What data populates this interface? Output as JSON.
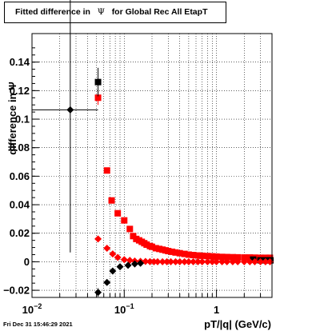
{
  "title_prefix": "Fitted difference in",
  "title_symbol": "Ψ",
  "title_suffix": "for Global Rec All EtapT",
  "datestamp": "Fri Dec 31 15:46:29 2021",
  "chart_data": {
    "type": "scatter",
    "xlabel": "pT/|q| (GeV/c)",
    "ylabel": "difference in Ψ",
    "x_scale": "log",
    "xlim": [
      0.01,
      4.0
    ],
    "ylim": [
      -0.025,
      0.16
    ],
    "grid": true,
    "legend": "none",
    "y_ticks": [
      {
        "v": -0.02,
        "label": "−0.02"
      },
      {
        "v": 0,
        "label": "0"
      },
      {
        "v": 0.02,
        "label": "0.02"
      },
      {
        "v": 0.04,
        "label": "0.04"
      },
      {
        "v": 0.06,
        "label": "0.06"
      },
      {
        "v": 0.08,
        "label": "0.08"
      },
      {
        "v": 0.1,
        "label": "0.1"
      },
      {
        "v": 0.12,
        "label": "0.12"
      },
      {
        "v": 0.14,
        "label": "0.14"
      }
    ],
    "x_ticks": [
      {
        "v": 0.01,
        "base": "10",
        "exp": "−2"
      },
      {
        "v": 0.1,
        "base": "10",
        "exp": "−1"
      },
      {
        "v": 1,
        "base": "1",
        "exp": ""
      }
    ],
    "series": [
      {
        "color": "#ff0000",
        "marker": "square",
        "points": [
          [
            0.052,
            0.115
          ],
          [
            0.065,
            0.064
          ],
          [
            0.073,
            0.043
          ],
          [
            0.085,
            0.034
          ],
          [
            0.1,
            0.029
          ],
          [
            0.115,
            0.023
          ],
          [
            0.125,
            0.018
          ],
          [
            0.135,
            0.016
          ],
          [
            0.145,
            0.015
          ],
          [
            0.155,
            0.014
          ],
          [
            0.165,
            0.013
          ],
          [
            0.175,
            0.012
          ],
          [
            0.19,
            0.011
          ],
          [
            0.2,
            0.0105
          ],
          [
            0.22,
            0.0095
          ],
          [
            0.24,
            0.009
          ],
          [
            0.26,
            0.0085
          ],
          [
            0.28,
            0.008
          ],
          [
            0.3,
            0.0075
          ],
          [
            0.33,
            0.007
          ],
          [
            0.36,
            0.0065
          ],
          [
            0.4,
            0.006
          ],
          [
            0.45,
            0.0055
          ],
          [
            0.5,
            0.005
          ],
          [
            0.56,
            0.0047
          ],
          [
            0.63,
            0.0044
          ],
          [
            0.7,
            0.0042
          ],
          [
            0.8,
            0.004
          ],
          [
            0.9,
            0.0038
          ],
          [
            1.0,
            0.0036
          ],
          [
            1.15,
            0.0034
          ],
          [
            1.3,
            0.0033
          ],
          [
            1.5,
            0.0032
          ],
          [
            1.7,
            0.0031
          ],
          [
            2.0,
            0.003
          ],
          [
            2.3,
            0.003
          ],
          [
            2.6,
            0.0029
          ],
          [
            3.0,
            0.0028
          ],
          [
            3.4,
            0.0028
          ],
          [
            3.8,
            0.0028
          ]
        ],
        "yerr": [
          0.005,
          0.002,
          0.0015,
          0.001,
          0.001,
          0.001,
          0.0008,
          0.0008,
          0.0006,
          0.0006,
          0.0005,
          0.0005,
          0.0005,
          0.0005,
          0.0004,
          0.0004,
          0.0004,
          0.0004,
          0.0003,
          0.0003,
          0.0003,
          0.0003,
          0.0003,
          0.0003,
          0.0002,
          0.0002,
          0.0002,
          0.0002,
          0.0002,
          0.0002,
          0.0002,
          0.0002,
          0.0002,
          0.0002,
          0.0002,
          0.0002,
          0.0002,
          0.0002,
          0.0002,
          0.0002
        ]
      },
      {
        "color": "#000000",
        "marker": "square",
        "points": [
          [
            0.052,
            0.126
          ],
          [
            2.5,
            0.0015
          ],
          [
            3.0,
            0.001
          ],
          [
            3.5,
            0.001
          ],
          [
            3.85,
            0.001
          ]
        ],
        "yerr": [
          0.01,
          0.0005,
          0.0005,
          0.0005,
          0.0005
        ]
      },
      {
        "color": "#ff0000",
        "marker": "diamond",
        "points": [
          [
            0.052,
            0.016
          ],
          [
            0.065,
            0.0095
          ],
          [
            0.075,
            0.0055
          ],
          [
            0.085,
            0.003
          ],
          [
            0.1,
            0.0015
          ],
          [
            0.115,
            0.001
          ],
          [
            0.13,
            0.0005
          ],
          [
            0.15,
            0.0003
          ],
          [
            0.17,
            0.0002
          ],
          [
            0.19,
            0.0001
          ],
          [
            0.21,
            0
          ],
          [
            0.23,
            0
          ],
          [
            0.26,
            0
          ],
          [
            0.29,
            0
          ],
          [
            0.32,
            0
          ],
          [
            0.36,
            0
          ],
          [
            0.4,
            0
          ],
          [
            0.45,
            0
          ],
          [
            0.5,
            0
          ],
          [
            0.56,
            0
          ],
          [
            0.63,
            0
          ],
          [
            0.7,
            0
          ],
          [
            0.8,
            0
          ],
          [
            0.9,
            0
          ],
          [
            1.0,
            0
          ],
          [
            1.15,
            0
          ],
          [
            1.3,
            0
          ],
          [
            1.5,
            0
          ],
          [
            1.7,
            0
          ],
          [
            2.0,
            0
          ],
          [
            2.3,
            0
          ],
          [
            2.6,
            0
          ],
          [
            3.0,
            0
          ],
          [
            3.4,
            0
          ],
          [
            3.8,
            0
          ]
        ],
        "yerr": [
          0.0015,
          0.001,
          0.0008,
          0.0006,
          0.0005,
          0.0005,
          0.0004,
          0.0004,
          0.0003,
          0.0003,
          0.0003,
          0.0003,
          0.0003,
          0.0003,
          0.0003,
          0.0003,
          0.0003,
          0.0003,
          0.0003,
          0.0003,
          0.0003,
          0.0003,
          0.0003,
          0.0003,
          0.0003,
          0.0003,
          0.0003,
          0.0003,
          0.0003,
          0.0003,
          0.0003,
          0.0003,
          0.0003,
          0.0003,
          0.0003
        ]
      },
      {
        "color": "#000000",
        "marker": "diamond",
        "points": [
          [
            0.026,
            0.1065
          ],
          [
            0.052,
            -0.0215
          ],
          [
            0.065,
            -0.0145
          ],
          [
            0.075,
            -0.0065
          ],
          [
            0.09,
            -0.0035
          ],
          [
            0.11,
            -0.0025
          ],
          [
            0.13,
            -0.0015
          ],
          [
            0.15,
            -0.001
          ]
        ],
        "yerr": [
          0.1,
          0.003,
          0.002,
          0.001,
          0.001,
          0.0008,
          0.0006,
          0.0005
        ],
        "xerr": [
          [
            0.01,
            0.052
          ],
          null,
          null,
          null,
          null,
          null,
          null,
          null
        ]
      }
    ]
  }
}
